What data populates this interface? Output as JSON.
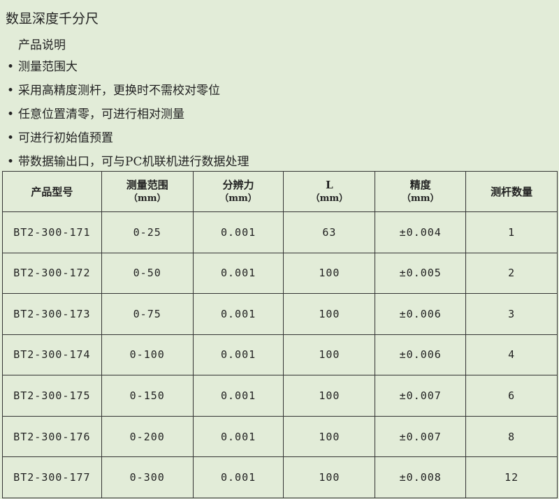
{
  "title": "数显深度千分尺",
  "subtitle": "产品说明",
  "features": [
    "测量范围大",
    "采用高精度测杆，更换时不需校对零位",
    "任意位置清零，可进行相对测量",
    "可进行初始值预置",
    "带数据输出口，可与PC机联机进行数据处理"
  ],
  "table": {
    "headers": [
      {
        "label": "产品型号",
        "unit": ""
      },
      {
        "label": "测量范围",
        "unit": "（mm）"
      },
      {
        "label": "分辨力",
        "unit": "（mm）"
      },
      {
        "label": "L",
        "unit": "（mm）"
      },
      {
        "label": "精度",
        "unit": "（mm）"
      },
      {
        "label": "测杆数量",
        "unit": ""
      }
    ],
    "rows": [
      [
        "BT2-300-171",
        "0-25",
        "0.001",
        "63",
        "±0.004",
        "1"
      ],
      [
        "BT2-300-172",
        "0-50",
        "0.001",
        "100",
        "±0.005",
        "2"
      ],
      [
        "BT2-300-173",
        "0-75",
        "0.001",
        "100",
        "±0.006",
        "3"
      ],
      [
        "BT2-300-174",
        "0-100",
        "0.001",
        "100",
        "±0.006",
        "4"
      ],
      [
        "BT2-300-175",
        "0-150",
        "0.001",
        "100",
        "±0.007",
        "6"
      ],
      [
        "BT2-300-176",
        "0-200",
        "0.001",
        "100",
        "±0.007",
        "8"
      ],
      [
        "BT2-300-177",
        "0-300",
        "0.001",
        "100",
        "±0.008",
        "12"
      ]
    ]
  }
}
